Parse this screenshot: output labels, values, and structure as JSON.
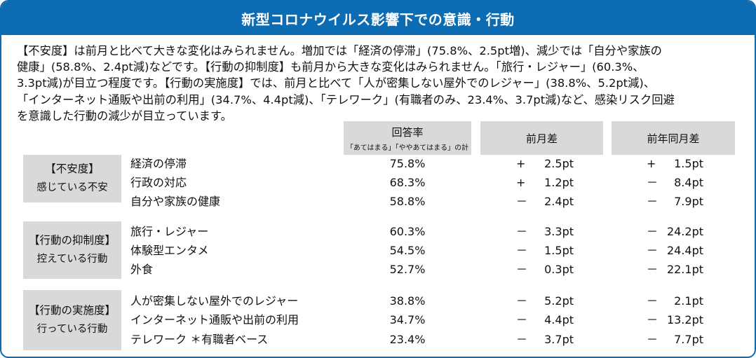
{
  "title": "新型コロナウイルス影響下での意識・行動",
  "summary": "【不安度】は前月と比べて大きな変化はみられません。増加では「経済の停滞」(75.8%、2.5pt増)、減少では「自分や家族の\n健康」(58.8%、2.4pt減)などです。【行動の抑制度】も前月から大きな変化はみられません。「旅行・レジャー」(60.3%、\n3.3pt減)が目立つ程度です。【行動の実施度】では、前月と比べて「人が密集しない屋外でのレジャー」(38.8%、5.2pt減)、\n「インターネット通販や出前の利用」(34.7%、4.4pt減)、「テレワーク」(有職者のみ、23.4%、3.7pt減)など、感染リスク回避\nを意識した行動の減少が目立っています。",
  "columns": {
    "rate": "回答率",
    "rate_sub": "「あてはまる」「ややあてはまる」の計",
    "mom": "前月差",
    "yoy": "前年同月差"
  },
  "categories": [
    {
      "title": "【不安度】",
      "subtitle": "感じている不安",
      "rows": [
        {
          "label": "経済の停滞",
          "rate": "75.8%",
          "mom_sign": "+",
          "mom": "2.5pt",
          "yoy_sign": "+",
          "yoy": "1.5pt"
        },
        {
          "label": "行政の対応",
          "rate": "68.3%",
          "mom_sign": "+",
          "mom": "1.2pt",
          "yoy_sign": "－",
          "yoy": "8.4pt"
        },
        {
          "label": "自分や家族の健康",
          "rate": "58.8%",
          "mom_sign": "－",
          "mom": "2.4pt",
          "yoy_sign": "－",
          "yoy": "7.9pt"
        }
      ]
    },
    {
      "title": "【行動の抑制度】",
      "subtitle": "控えている行動",
      "rows": [
        {
          "label": "旅行・レジャー",
          "rate": "60.3%",
          "mom_sign": "－",
          "mom": "3.3pt",
          "yoy_sign": "－",
          "yoy": "24.2pt"
        },
        {
          "label": "体験型エンタメ",
          "rate": "54.5%",
          "mom_sign": "－",
          "mom": "1.5pt",
          "yoy_sign": "－",
          "yoy": "24.4pt"
        },
        {
          "label": "外食",
          "rate": "52.7%",
          "mom_sign": "－",
          "mom": "0.3pt",
          "yoy_sign": "－",
          "yoy": "22.1pt"
        }
      ]
    },
    {
      "title": "【行動の実施度】",
      "subtitle": "行っている行動",
      "rows": [
        {
          "label": "人が密集しない屋外でのレジャー",
          "rate": "38.8%",
          "mom_sign": "－",
          "mom": "5.2pt",
          "yoy_sign": "－",
          "yoy": "2.1pt"
        },
        {
          "label": "インターネット通販や出前の利用",
          "rate": "34.7%",
          "mom_sign": "－",
          "mom": "4.4pt",
          "yoy_sign": "－",
          "yoy": "13.2pt"
        },
        {
          "label": "テレワーク ＊有職者ベース",
          "rate": "23.4%",
          "mom_sign": "－",
          "mom": "3.7pt",
          "yoy_sign": "－",
          "yoy": "7.7pt"
        }
      ]
    }
  ]
}
